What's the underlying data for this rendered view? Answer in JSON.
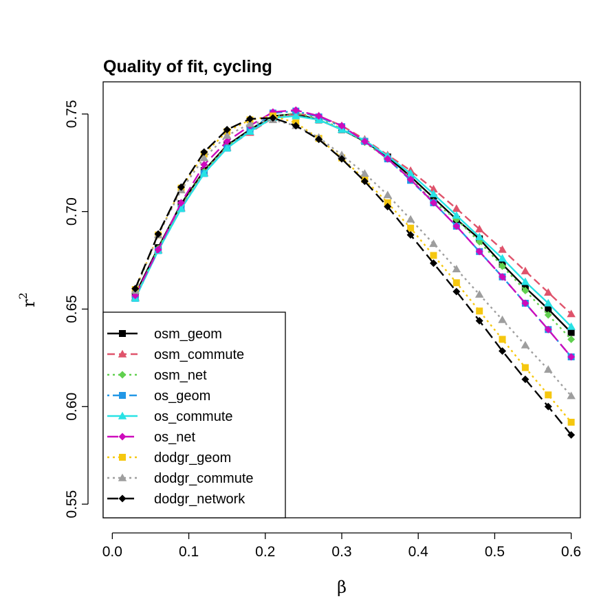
{
  "chart_data": {
    "type": "line",
    "title": "Quality of fit, cycling",
    "xlabel": "β",
    "ylabel": "r",
    "ylabel_sup": "2",
    "xlim": [
      -0.012,
      0.612
    ],
    "ylim": [
      0.543,
      0.7665
    ],
    "xticks": [
      0.0,
      0.1,
      0.2,
      0.3,
      0.4,
      0.5,
      0.6
    ],
    "xtick_labels": [
      "0.0",
      "0.1",
      "0.2",
      "0.3",
      "0.4",
      "0.5",
      "0.6"
    ],
    "yticks": [
      0.55,
      0.6,
      0.65,
      0.7,
      0.75
    ],
    "ytick_labels": [
      "0.55",
      "0.60",
      "0.65",
      "0.70",
      "0.75"
    ],
    "legend_position": "bottom-left",
    "x": [
      0.03,
      0.06,
      0.09,
      0.12,
      0.15,
      0.18,
      0.21,
      0.24,
      0.27,
      0.3,
      0.33,
      0.36,
      0.39,
      0.42,
      0.45,
      0.48,
      0.51,
      0.54,
      0.57,
      0.6
    ],
    "series": [
      {
        "name": "osm_geom",
        "color": "#000000",
        "line": "solid",
        "marker": "square",
        "values": [
          0.6575,
          0.6815,
          0.704,
          0.721,
          0.734,
          0.742,
          0.749,
          0.75,
          0.747,
          0.742,
          0.736,
          0.728,
          0.718,
          0.707,
          0.696,
          0.686,
          0.673,
          0.661,
          0.65,
          0.638
        ]
      },
      {
        "name": "osm_commute",
        "color": "#DF536B",
        "line": "dashed",
        "marker": "triangle",
        "values": [
          0.656,
          0.6805,
          0.702,
          0.72,
          0.733,
          0.7405,
          0.748,
          0.75,
          0.749,
          0.744,
          0.737,
          0.729,
          0.721,
          0.7115,
          0.7015,
          0.691,
          0.6805,
          0.6695,
          0.6585,
          0.6475
        ]
      },
      {
        "name": "osm_net",
        "color": "#61D04F",
        "line": "dotted",
        "marker": "diamond",
        "values": [
          0.6565,
          0.681,
          0.703,
          0.7205,
          0.7335,
          0.7415,
          0.7485,
          0.7505,
          0.7475,
          0.7425,
          0.7355,
          0.727,
          0.717,
          0.705,
          0.696,
          0.6845,
          0.672,
          0.6595,
          0.647,
          0.6345
        ]
      },
      {
        "name": "os_geom",
        "color": "#2297E6",
        "line": "dotdash",
        "marker": "square",
        "values": [
          0.6555,
          0.68,
          0.7015,
          0.7195,
          0.7325,
          0.7415,
          0.7505,
          0.7515,
          0.7485,
          0.7435,
          0.736,
          0.727,
          0.716,
          0.7045,
          0.6925,
          0.6795,
          0.6665,
          0.653,
          0.6395,
          0.6255
        ]
      },
      {
        "name": "os_commute",
        "color": "#28E2E5",
        "line": "solid",
        "marker": "triangle",
        "values": [
          0.6555,
          0.68,
          0.7015,
          0.7195,
          0.7325,
          0.741,
          0.748,
          0.749,
          0.747,
          0.742,
          0.7365,
          0.7285,
          0.7195,
          0.709,
          0.698,
          0.687,
          0.676,
          0.664,
          0.653,
          0.641
        ]
      },
      {
        "name": "os_net",
        "color": "#CD0BBC",
        "line": "longdash",
        "marker": "diamond",
        "values": [
          0.657,
          0.6805,
          0.7045,
          0.724,
          0.736,
          0.744,
          0.751,
          0.752,
          0.749,
          0.744,
          0.736,
          0.727,
          0.7165,
          0.7045,
          0.6925,
          0.6795,
          0.6665,
          0.653,
          0.6395,
          0.6255
        ]
      },
      {
        "name": "dodgr_geom",
        "color": "#F5C710",
        "line": "dotted",
        "marker": "square",
        "values": [
          0.66,
          0.688,
          0.712,
          0.7295,
          0.741,
          0.747,
          0.749,
          0.7455,
          0.7375,
          0.7275,
          0.7165,
          0.7045,
          0.6915,
          0.6775,
          0.6635,
          0.649,
          0.6345,
          0.62,
          0.606,
          0.592
        ]
      },
      {
        "name": "dodgr_commute",
        "color": "#9E9E9E",
        "line": "dotted",
        "marker": "triangle",
        "values": [
          0.6595,
          0.688,
          0.711,
          0.7275,
          0.739,
          0.745,
          0.747,
          0.744,
          0.738,
          0.729,
          0.7195,
          0.7085,
          0.696,
          0.6835,
          0.6705,
          0.6575,
          0.6445,
          0.6315,
          0.619,
          0.6055
        ]
      },
      {
        "name": "dodgr_network",
        "color": "#000000",
        "line": "longdash",
        "marker": "diamond",
        "values": [
          0.6605,
          0.6885,
          0.7125,
          0.7305,
          0.742,
          0.7475,
          0.748,
          0.744,
          0.737,
          0.727,
          0.7155,
          0.7025,
          0.688,
          0.6735,
          0.659,
          0.644,
          0.6285,
          0.614,
          0.6,
          0.5855
        ]
      }
    ]
  }
}
